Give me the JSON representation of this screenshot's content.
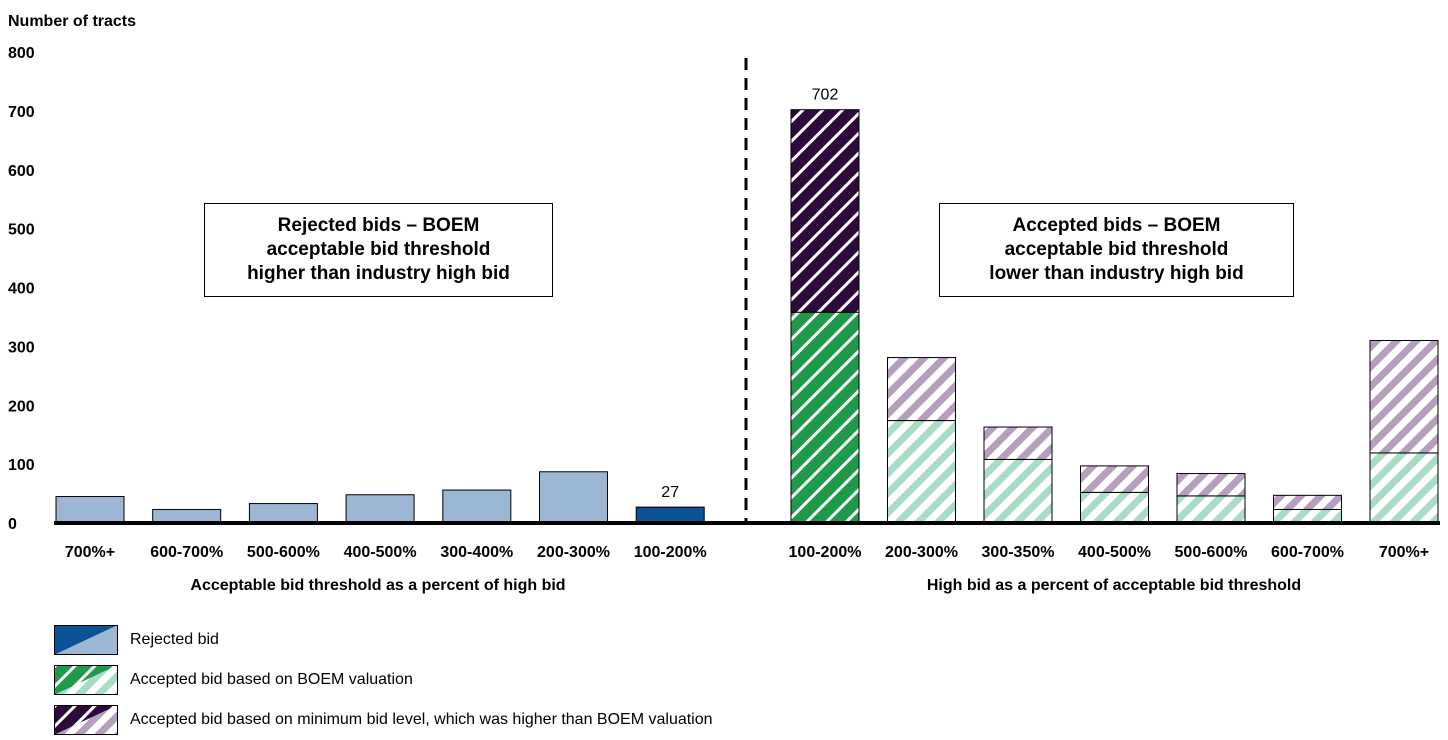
{
  "colors": {
    "rejected_dark": "#0b5394",
    "rejected_light": "#9bb7d4",
    "boem_dark": "#1e9a4a",
    "boem_light": "#a8dcc4",
    "min_dark": "#2c0a3a",
    "min_light": "#b69fbd",
    "stripe_light": "#ffffff"
  },
  "annotations": {
    "left": [
      "Rejected bids – BOEM",
      "acceptable bid threshold",
      "higher than industry high bid"
    ],
    "right": [
      "Accepted bids – BOEM",
      "acceptable bid threshold",
      "lower than industry high bid"
    ]
  },
  "legend": [
    {
      "key": "rejected",
      "label": "Rejected bid"
    },
    {
      "key": "boem",
      "label": "Accepted bid based on BOEM valuation"
    },
    {
      "key": "min",
      "label": "Accepted bid based on minimum bid level, which was higher than BOEM valuation"
    }
  ],
  "chart_data": [
    {
      "type": "bar",
      "ylabel": "Number of tracts",
      "ylim": [
        0,
        800
      ],
      "yticks": [
        0,
        100,
        200,
        300,
        400,
        500,
        600,
        700,
        800
      ],
      "xlabel": "Acceptable bid threshold as a percent of high bid",
      "categories": [
        "700%+",
        "600-700%",
        "500-600%",
        "400-500%",
        "300-400%",
        "200-300%",
        "100-200%"
      ],
      "series": [
        {
          "key": "rejected",
          "values": [
            45,
            23,
            33,
            48,
            56,
            87,
            27
          ]
        }
      ],
      "highlight_index": 6,
      "data_labels": [
        null,
        null,
        null,
        null,
        null,
        null,
        "27"
      ]
    },
    {
      "type": "bar",
      "stacked": true,
      "ylim": [
        0,
        800
      ],
      "xlabel": "High bid as a percent of acceptable bid threshold",
      "categories": [
        "100-200%",
        "200-300%",
        "300-350%",
        "400-500%",
        "500-600%",
        "600-700%",
        "700%+"
      ],
      "series": [
        {
          "key": "boem",
          "values": [
            358,
            174,
            108,
            52,
            46,
            23,
            119
          ]
        },
        {
          "key": "min",
          "values": [
            344,
            107,
            55,
            45,
            38,
            24,
            191
          ]
        }
      ],
      "highlight_index": 0,
      "data_labels": [
        "702",
        null,
        null,
        null,
        null,
        null,
        null
      ]
    }
  ]
}
